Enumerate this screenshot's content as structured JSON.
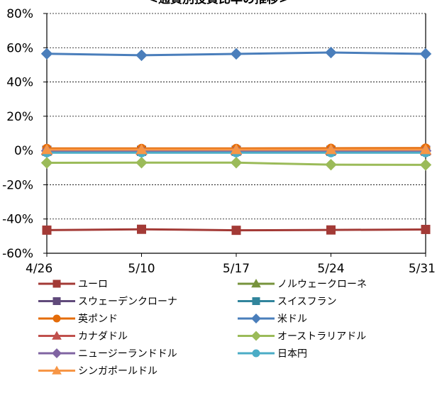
{
  "chart_data": {
    "type": "line",
    "title": "<通貨別投資比率の推移>",
    "xlabel": "",
    "ylabel": "",
    "categories": [
      "4/26",
      "5/10",
      "5/17",
      "5/24",
      "5/31"
    ],
    "y_tick_labels": [
      "80%",
      "60%",
      "40%",
      "20%",
      "0%",
      "-20%",
      "-40%",
      "-60%"
    ],
    "ylim": [
      -60,
      80
    ],
    "y_ticks": [
      80,
      60,
      40,
      20,
      0,
      -20,
      -40,
      -60
    ],
    "grid": true,
    "legend_position": "bottom",
    "series": [
      {
        "name": "ユーロ",
        "values": [
          -46.5,
          -46.0,
          -46.6,
          -46.4,
          -46.1
        ],
        "color": "#a33a36",
        "marker": "square"
      },
      {
        "name": "ノルウェークローネ",
        "values": [
          0.3,
          0.3,
          0.3,
          0.3,
          0.3
        ],
        "color": "#77933c",
        "marker": "triangle"
      },
      {
        "name": "スウェーデンクローナ",
        "values": [
          0.1,
          0.1,
          0.1,
          0.1,
          0.1
        ],
        "color": "#604a7b",
        "marker": "square"
      },
      {
        "name": "スイスフラン",
        "values": [
          -0.5,
          -0.5,
          -0.5,
          -0.5,
          -0.5
        ],
        "color": "#31859c",
        "marker": "square"
      },
      {
        "name": "英ポンド",
        "values": [
          1.2,
          1.2,
          1.2,
          1.3,
          1.4
        ],
        "color": "#e46c0a",
        "marker": "circle"
      },
      {
        "name": "米ドル",
        "values": [
          56.5,
          55.6,
          56.4,
          57.2,
          56.4
        ],
        "color": "#4a7ebb",
        "marker": "diamond"
      },
      {
        "name": "カナダドル",
        "values": [
          0.0,
          0.0,
          0.0,
          0.0,
          0.0
        ],
        "color": "#c0504d",
        "marker": "triangle"
      },
      {
        "name": "オーストラリアドル",
        "values": [
          -7.2,
          -7.1,
          -7.1,
          -8.3,
          -8.4
        ],
        "color": "#9bbb59",
        "marker": "diamond"
      },
      {
        "name": "ニュージーランドドル",
        "values": [
          -0.2,
          -0.2,
          -0.2,
          -0.2,
          -0.2
        ],
        "color": "#8064a2",
        "marker": "diamond"
      },
      {
        "name": "日本円",
        "values": [
          -1.3,
          -1.3,
          -1.3,
          -1.3,
          -1.3
        ],
        "color": "#4bacc6",
        "marker": "circle"
      },
      {
        "name": "シンガポールドル",
        "values": [
          0.5,
          0.5,
          0.5,
          0.5,
          0.5
        ],
        "color": "#f79646",
        "marker": "triangle"
      }
    ]
  }
}
